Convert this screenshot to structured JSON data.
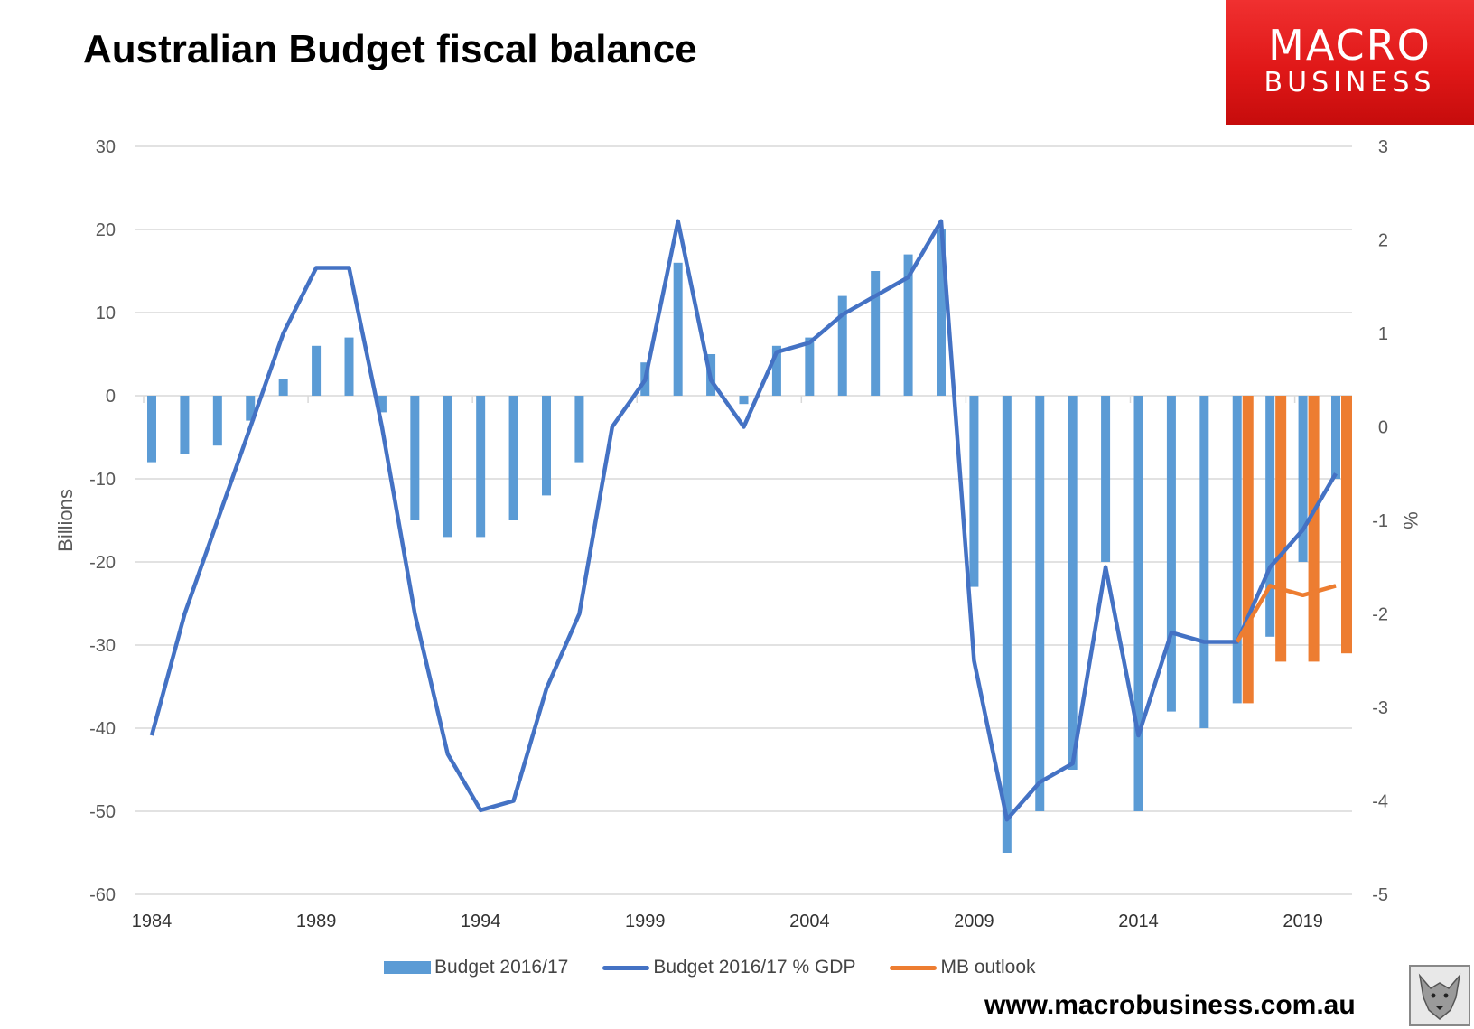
{
  "title": "Australian Budget fiscal balance",
  "logo": {
    "line1": "MACRO",
    "line2": "BUSINESS"
  },
  "footer_url": "www.macrobusiness.com.au",
  "colors": {
    "budget": "#5b9bd5",
    "gdp_line": "#4472c4",
    "mb": "#ed7d31",
    "grid": "#d9d9d9",
    "text": "#595959"
  },
  "chart_data": {
    "type": "bar",
    "x": [
      1984,
      1985,
      1986,
      1987,
      1988,
      1989,
      1990,
      1991,
      1992,
      1993,
      1994,
      1995,
      1996,
      1997,
      1998,
      1999,
      2000,
      2001,
      2002,
      2003,
      2004,
      2005,
      2006,
      2007,
      2008,
      2009,
      2010,
      2011,
      2012,
      2013,
      2014,
      2015,
      2016,
      2017,
      2018,
      2019,
      2020
    ],
    "x_tick_labels": [
      "1984",
      "1989",
      "1994",
      "1999",
      "2004",
      "2009",
      "2014",
      "2019"
    ],
    "ylabel": "Billions",
    "y2label": "%",
    "ylim": [
      -60,
      30
    ],
    "y2lim": [
      -5,
      3
    ],
    "yticks": [
      30,
      20,
      10,
      0,
      -10,
      -20,
      -30,
      -40,
      -50,
      -60
    ],
    "y2ticks": [
      3,
      2,
      1,
      0,
      -1,
      -2,
      -3,
      -4,
      -5
    ],
    "grid": true,
    "legend_position": "bottom",
    "series": [
      {
        "name": "Budget 2016/17",
        "type": "bar",
        "axis": "left",
        "values": [
          -8,
          -7,
          -6,
          -3,
          2,
          6,
          7,
          -2,
          -15,
          -17,
          -17,
          -15,
          -12,
          -8,
          null,
          4,
          16,
          5,
          -1,
          6,
          7,
          12,
          15,
          17,
          20,
          -23,
          -55,
          -50,
          -45,
          -20,
          -50,
          -38,
          -40,
          -37,
          -29,
          -20,
          -10
        ]
      },
      {
        "name": "Budget 2016/17 % GDP",
        "type": "line",
        "axis": "right",
        "values": [
          -3.3,
          -2.0,
          -1.0,
          0.0,
          1.0,
          1.7,
          1.7,
          0.0,
          -2.0,
          -3.5,
          -4.1,
          -4.0,
          -2.8,
          -2.0,
          0.0,
          0.5,
          2.2,
          0.5,
          0.0,
          0.8,
          0.9,
          1.2,
          1.4,
          1.6,
          2.2,
          -2.5,
          -4.2,
          -3.8,
          -3.6,
          -1.5,
          -3.3,
          -2.2,
          -2.3,
          -2.3,
          -1.5,
          -1.1,
          -0.5
        ]
      },
      {
        "name": "MB outlook",
        "type": "bar+line",
        "axis": "left",
        "x": [
          2017,
          2018,
          2019,
          2020
        ],
        "bar_values": [
          -37,
          -32,
          -32,
          -31
        ],
        "line_values_pct": [
          -2.3,
          -1.7,
          -1.8,
          -1.7
        ]
      }
    ]
  }
}
